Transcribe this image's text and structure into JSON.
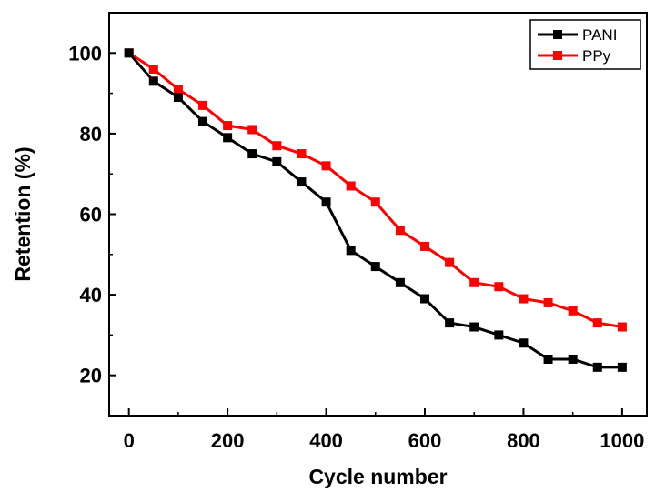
{
  "chart_data": {
    "type": "line",
    "xlabel": "Cycle number",
    "ylabel": "Retention (%)",
    "xlim": [
      -40,
      1050
    ],
    "ylim": [
      10,
      110
    ],
    "xticks": [
      0,
      200,
      400,
      600,
      800,
      1000
    ],
    "yticks": [
      20,
      40,
      60,
      80,
      100
    ],
    "grid": false,
    "legend_position": "top-right",
    "x": [
      0,
      50,
      100,
      150,
      200,
      250,
      300,
      350,
      400,
      450,
      500,
      550,
      600,
      650,
      700,
      750,
      800,
      850,
      900,
      950,
      1000
    ],
    "series": [
      {
        "name": "PANI",
        "color": "#000000",
        "values": [
          100,
          93,
          89,
          83,
          79,
          75,
          73,
          68,
          63,
          51,
          47,
          43,
          39,
          33,
          32,
          30,
          28,
          24,
          24,
          22,
          22
        ]
      },
      {
        "name": "PPy",
        "color": "#ff0000",
        "values": [
          100,
          96,
          91,
          87,
          82,
          81,
          77,
          75,
          72,
          67,
          63,
          56,
          52,
          48,
          43,
          42,
          39,
          38,
          36,
          33,
          32
        ]
      }
    ]
  }
}
